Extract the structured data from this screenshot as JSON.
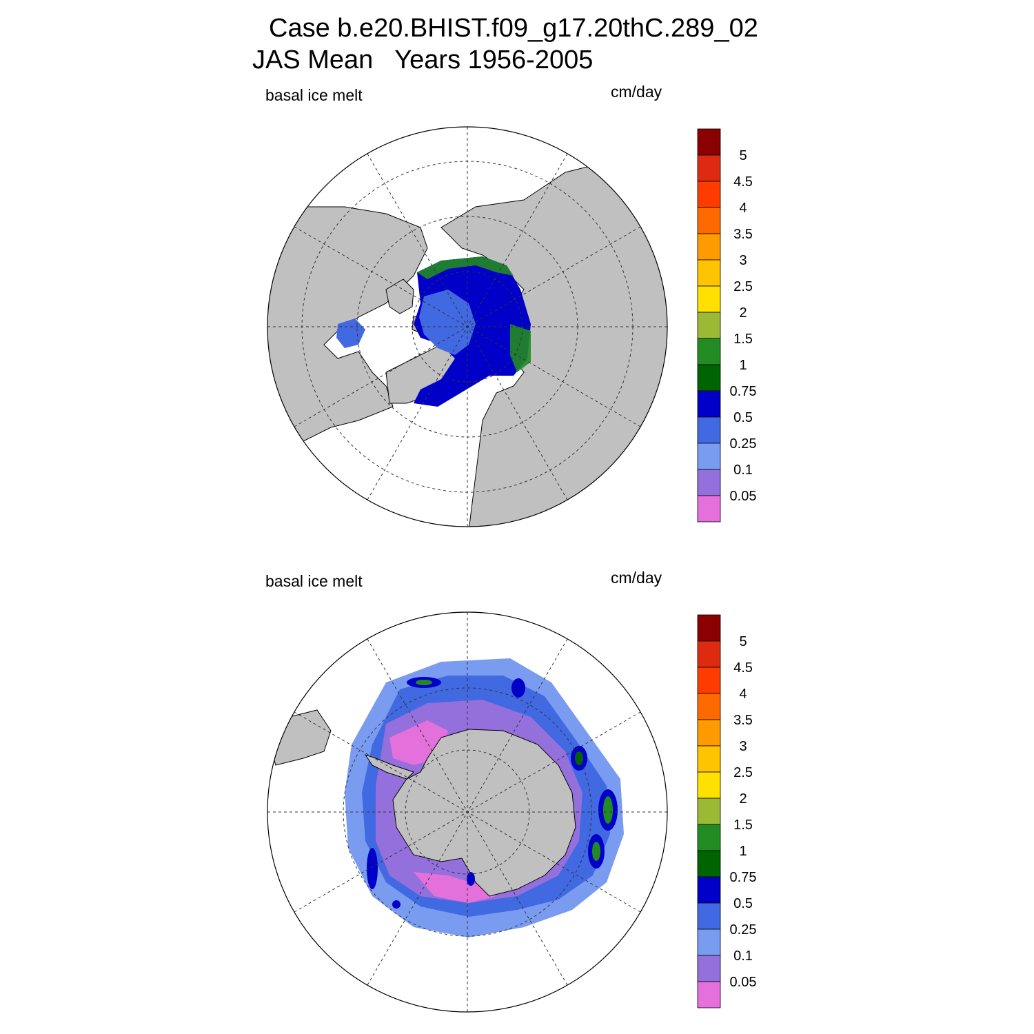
{
  "header": {
    "title_line1": "Case b.e20.BHIST.f09_g17.20thC.289_02",
    "title_line2": "JAS Mean   Years 1956-2005"
  },
  "panels": [
    {
      "id": "north",
      "variable_label": "basal ice melt",
      "units_label": "cm/day",
      "hemisphere": "north polar stereographic"
    },
    {
      "id": "south",
      "variable_label": "basal ice melt",
      "units_label": "cm/day",
      "hemisphere": "south polar stereographic"
    }
  ],
  "colorbar": {
    "levels": [
      "0.05",
      "0.1",
      "0.25",
      "0.5",
      "0.75",
      "1",
      "1.5",
      "2",
      "2.5",
      "3",
      "3.5",
      "4",
      "4.5",
      "5"
    ],
    "colors": [
      "#e470dc",
      "#9370db",
      "#7a9cf0",
      "#4169e1",
      "#0000c8",
      "#006400",
      "#228b22",
      "#9aba36",
      "#ffe000",
      "#ffc400",
      "#ff9a00",
      "#ff6a00",
      "#ff3c00",
      "#dd2a10",
      "#8b0000"
    ]
  },
  "palette": {
    "land": "#c0c0c0",
    "ocean": "#ffffff",
    "grid": "#333333"
  }
}
